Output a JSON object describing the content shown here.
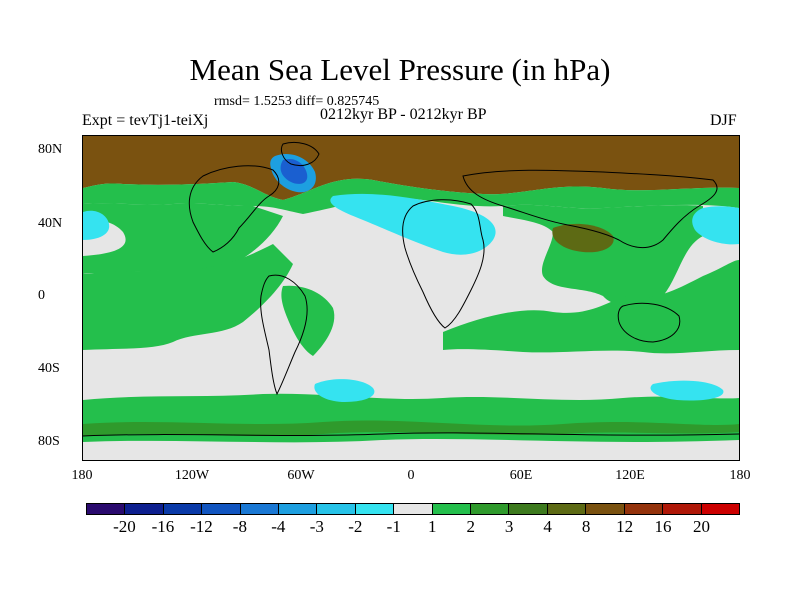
{
  "title": "Mean Sea Level Pressure (in hPa)",
  "stats": "rmsd= 1.5253 diff= 0.825745",
  "period": "0212kyr BP - 0212kyr BP",
  "experiment": "Expt = tevTj1-teiXj",
  "season": "DJF",
  "lat_labels": [
    "80N",
    "40N",
    "0",
    "40S",
    "80S"
  ],
  "lon_labels": [
    "180",
    "120W",
    "60W",
    "0",
    "60E",
    "120E",
    "180"
  ],
  "colorbar": {
    "labels": [
      "-20",
      "-16",
      "-12",
      "-8",
      "-4",
      "-3",
      "-2",
      "-1",
      "1",
      "2",
      "3",
      "4",
      "8",
      "12",
      "16",
      "20"
    ],
    "colors": [
      "#2a0a6e",
      "#0d1f8f",
      "#0a3aa8",
      "#1155c0",
      "#1a78d4",
      "#1d9fe0",
      "#27c3e8",
      "#35e3f0",
      "#e6e6e6",
      "#24bf4c",
      "#2f9a2c",
      "#3d7a1e",
      "#5d6a14",
      "#7a5210",
      "#94330c",
      "#b01808",
      "#cc0000"
    ]
  },
  "map_colors": {
    "background": "#e6e6e6",
    "green": "#24bf4c",
    "dark_green": "#2f9a2c",
    "brown": "#7a5210",
    "olive": "#5d6a14",
    "cyan": "#35e3f0",
    "light_blue": "#1d9fe0",
    "blue": "#1a5fd0"
  }
}
